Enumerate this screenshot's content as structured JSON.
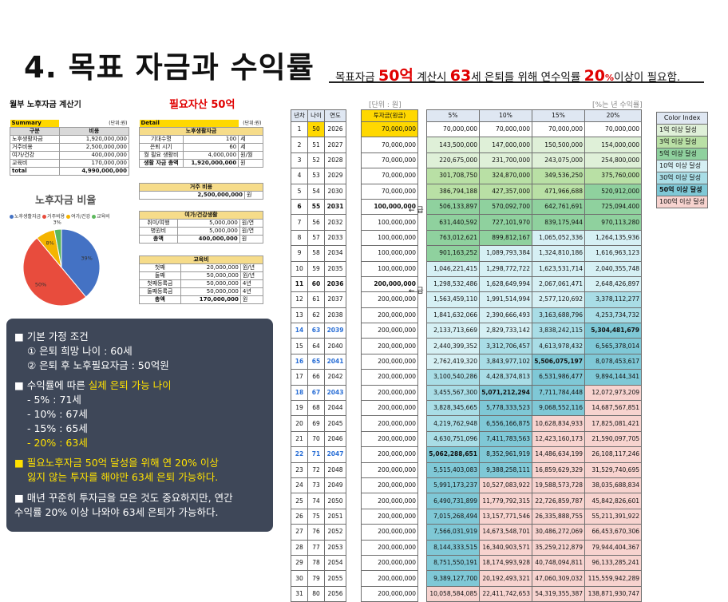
{
  "title": "4. 목표 자금과 수익률",
  "subtitle": {
    "p1": "목표자금 ",
    "amount": "50억",
    "p2": " 계산시 ",
    "age": "63",
    "p3": "세 은퇴를 위해 연수익률 ",
    "rate": "20",
    "rate_unit": "%",
    "p4": "이상이 필요함."
  },
  "summary": {
    "title": "월부 노후자금 계산기",
    "label": "Summary",
    "unit": "(단위:원)",
    "col_category": "구분",
    "col_cost": "비용",
    "rows": [
      {
        "name": "노후생활자금",
        "value": "1,920,000,000"
      },
      {
        "name": "거주비용",
        "value": "2,500,000,000"
      },
      {
        "name": "여가/건강",
        "value": "400,000,000"
      },
      {
        "name": "교육비",
        "value": "170,000,000"
      }
    ],
    "total_label": "total",
    "total_value": "4,990,000,000"
  },
  "required": {
    "title": "필요자산 50억",
    "detail_label": "Detail",
    "unit": "(단위:원)",
    "living": {
      "header": "노후생활자금",
      "rows": [
        {
          "name": "기대수명",
          "value": "100",
          "unit": "세"
        },
        {
          "name": "은퇴 시기",
          "value": "60",
          "unit": "세"
        },
        {
          "name": "월 필요 생활비",
          "value": "4,000,000",
          "unit": "원/월"
        },
        {
          "name": "생활 자금 총액",
          "value": "1,920,000,000",
          "unit": "원"
        }
      ]
    },
    "housing": {
      "header": "거주 비용",
      "value": "2,500,000,000",
      "unit": "원"
    },
    "leisure": {
      "header": "여가/건강생활",
      "rows": [
        {
          "name": "취미/여행",
          "value": "5,000,000",
          "unit": "원/연"
        },
        {
          "name": "병원비",
          "value": "5,000,000",
          "unit": "원/연"
        },
        {
          "name": "총액",
          "value": "400,000,000",
          "unit": "원"
        }
      ]
    },
    "education": {
      "header": "교육비",
      "rows": [
        {
          "name": "첫째",
          "value": "20,000,000",
          "unit": "원/년"
        },
        {
          "name": "둘째",
          "value": "50,000,000",
          "unit": "원/년"
        },
        {
          "name": "첫째등록금",
          "value": "50,000,000",
          "unit": "4년"
        },
        {
          "name": "둘째등록금",
          "value": "50,000,000",
          "unit": "4년"
        },
        {
          "name": "총액",
          "value": "170,000,000",
          "unit": "원"
        }
      ]
    }
  },
  "chart_data": {
    "type": "pie",
    "title": "노후자금 비율",
    "labels": [
      "노후생활자금",
      "거주비용",
      "여가/건강",
      "교육비"
    ],
    "values": [
      39,
      50,
      8,
      3
    ],
    "value_labels": [
      "39%",
      "50%",
      "8%",
      "3%"
    ],
    "colors": [
      "#4472c4",
      "#e84c3d",
      "#f5b400",
      "#5cb85c"
    ]
  },
  "panel": {
    "l1": "■ 기본 가정 조건",
    "l2": "① 은퇴 희망 나이 : 60세",
    "l3": "② 은퇴 후 노후필요자금 : 50억원",
    "l4a": "■ 수익률에 따른 ",
    "l4b": "실제 은퇴 가능 나이",
    "l5": "- 5% : 71세",
    "l6": "- 10% : 67세",
    "l7": "- 15% : 65세",
    "l8": "- 20% : 63세",
    "l9": "■ 필요노후자금 50억 달성을 위해 연 20% 이상",
    "l10": "잃지 않는 투자를 해야만 63세 은퇴 가능하다.",
    "l11": "■ 매년 꾸준히 투자금을 모은 것도 중요하지만, 연간",
    "l12": "수익률 20% 이상 나와야 63세 은퇴가 가능하다."
  },
  "table": {
    "unit_left": "[단위 : 원]",
    "unit_right": "[%는 년 수익률]",
    "headers": [
      "년차",
      "나이",
      "연도",
      "투자금(원금)",
      "5%",
      "10%",
      "15%",
      "20%"
    ],
    "arrow_label": "← 급",
    "rows": [
      [
        1,
        50,
        2026,
        "70,000,000",
        "70,000,000",
        "70,000,000",
        "70,000,000",
        "70,000,000"
      ],
      [
        2,
        51,
        2027,
        "70,000,000",
        "143,500,000",
        "147,000,000",
        "150,500,000",
        "154,000,000"
      ],
      [
        3,
        52,
        2028,
        "70,000,000",
        "220,675,000",
        "231,700,000",
        "243,075,000",
        "254,800,000"
      ],
      [
        4,
        53,
        2029,
        "70,000,000",
        "301,708,750",
        "324,870,000",
        "349,536,250",
        "375,760,000"
      ],
      [
        5,
        54,
        2030,
        "70,000,000",
        "386,794,188",
        "427,357,000",
        "471,966,688",
        "520,912,000"
      ],
      [
        6,
        55,
        2031,
        "100,000,000",
        "506,133,897",
        "570,092,700",
        "642,761,691",
        "725,094,400"
      ],
      [
        7,
        56,
        2032,
        "100,000,000",
        "631,440,592",
        "727,101,970",
        "839,175,944",
        "970,113,280"
      ],
      [
        8,
        57,
        2033,
        "100,000,000",
        "763,012,621",
        "899,812,167",
        "1,065,052,336",
        "1,264,135,936"
      ],
      [
        9,
        58,
        2034,
        "100,000,000",
        "901,163,252",
        "1,089,793,384",
        "1,324,810,186",
        "1,616,963,123"
      ],
      [
        10,
        59,
        2035,
        "100,000,000",
        "1,046,221,415",
        "1,298,772,722",
        "1,623,531,714",
        "2,040,355,748"
      ],
      [
        11,
        60,
        2036,
        "200,000,000",
        "1,298,532,486",
        "1,628,649,994",
        "2,067,061,471",
        "2,648,426,897"
      ],
      [
        12,
        61,
        2037,
        "200,000,000",
        "1,563,459,110",
        "1,991,514,994",
        "2,577,120,692",
        "3,378,112,277"
      ],
      [
        13,
        62,
        2038,
        "200,000,000",
        "1,841,632,066",
        "2,390,666,493",
        "3,163,688,796",
        "4,253,734,732"
      ],
      [
        14,
        63,
        2039,
        "200,000,000",
        "2,133,713,669",
        "2,829,733,142",
        "3,838,242,115",
        "5,304,481,679"
      ],
      [
        15,
        64,
        2040,
        "200,000,000",
        "2,440,399,352",
        "3,312,706,457",
        "4,613,978,432",
        "6,565,378,014"
      ],
      [
        16,
        65,
        2041,
        "200,000,000",
        "2,762,419,320",
        "3,843,977,102",
        "5,506,075,197",
        "8,078,453,617"
      ],
      [
        17,
        66,
        2042,
        "200,000,000",
        "3,100,540,286",
        "4,428,374,813",
        "6,531,986,477",
        "9,894,144,341"
      ],
      [
        18,
        67,
        2043,
        "200,000,000",
        "3,455,567,300",
        "5,071,212,294",
        "7,711,784,448",
        "12,072,973,209"
      ],
      [
        19,
        68,
        2044,
        "200,000,000",
        "3,828,345,665",
        "5,778,333,523",
        "9,068,552,116",
        "14,687,567,851"
      ],
      [
        20,
        69,
        2045,
        "200,000,000",
        "4,219,762,948",
        "6,556,166,875",
        "10,628,834,933",
        "17,825,081,421"
      ],
      [
        21,
        70,
        2046,
        "200,000,000",
        "4,630,751,096",
        "7,411,783,563",
        "12,423,160,173",
        "21,590,097,705"
      ],
      [
        22,
        71,
        2047,
        "200,000,000",
        "5,062,288,651",
        "8,352,961,919",
        "14,486,634,199",
        "26,108,117,246"
      ],
      [
        23,
        72,
        2048,
        "200,000,000",
        "5,515,403,083",
        "9,388,258,111",
        "16,859,629,329",
        "31,529,740,695"
      ],
      [
        24,
        73,
        2049,
        "200,000,000",
        "5,991,173,237",
        "10,527,083,922",
        "19,588,573,728",
        "38,035,688,834"
      ],
      [
        25,
        74,
        2050,
        "200,000,000",
        "6,490,731,899",
        "11,779,792,315",
        "22,726,859,787",
        "45,842,826,601"
      ],
      [
        26,
        75,
        2051,
        "200,000,000",
        "7,015,268,494",
        "13,157,771,546",
        "26,335,888,755",
        "55,211,391,922"
      ],
      [
        27,
        76,
        2052,
        "200,000,000",
        "7,566,031,919",
        "14,673,548,701",
        "30,486,272,069",
        "66,453,670,306"
      ],
      [
        28,
        77,
        2053,
        "200,000,000",
        "8,144,333,515",
        "16,340,903,571",
        "35,259,212,879",
        "79,944,404,367"
      ],
      [
        29,
        78,
        2054,
        "200,000,000",
        "8,751,550,191",
        "18,174,993,928",
        "40,748,094,811",
        "96,133,285,241"
      ],
      [
        30,
        79,
        2055,
        "200,000,000",
        "9,389,127,700",
        "20,192,493,321",
        "47,060,309,032",
        "115,559,942,289"
      ],
      [
        31,
        80,
        2056,
        "200,000,000",
        "10,058,584,085",
        "22,411,742,653",
        "54,319,355,387",
        "138,871,930,747"
      ]
    ]
  },
  "color_index": {
    "header": "Color Index",
    "items": [
      {
        "label": "1억 이상 달성",
        "color": "#dff0d8"
      },
      {
        "label": "3억 이상 달성",
        "color": "#b9e0a5"
      },
      {
        "label": "5억 이상 달성",
        "color": "#8fd19e"
      },
      {
        "label": "10억 이상 달성",
        "color": "#d6f0f4"
      },
      {
        "label": "30억 이상 달성",
        "color": "#a9dde6"
      },
      {
        "label": "50억 이상 달성",
        "color": "#7fc8d6"
      },
      {
        "label": "100억 이상 달성",
        "color": "#f7d3cf"
      }
    ]
  }
}
